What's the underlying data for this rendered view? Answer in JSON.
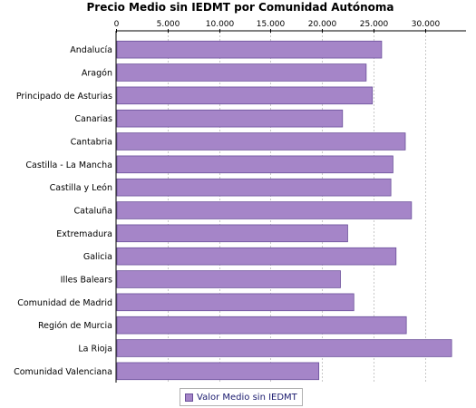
{
  "chart_data": {
    "type": "bar",
    "orientation": "horizontal",
    "title": "Precio Medio sin IEDMT por Comunidad Autónoma",
    "categories": [
      "Andalucía",
      "Aragón",
      "Principado de Asturias",
      "Canarias",
      "Cantabria",
      "Castilla - La Mancha",
      "Castilla y León",
      "Cataluña",
      "Extremadura",
      "Galicia",
      "Illes Balears",
      "Comunidad de Madrid",
      "Región de Murcia",
      "La Rioja",
      "Comunidad Valenciana"
    ],
    "series": [
      {
        "name": "Valor Medio sin IEDMT",
        "color": "#a585c8",
        "values": [
          25800,
          24300,
          24900,
          22000,
          28100,
          26900,
          26700,
          28700,
          22500,
          27200,
          21800,
          23100,
          28200,
          32600,
          19700
        ]
      }
    ],
    "value_axis": {
      "min": 0,
      "max": 34000,
      "ticks": [
        0,
        5000,
        10000,
        15000,
        20000,
        25000,
        30000
      ],
      "tick_labels": [
        "0",
        "5.000",
        "10.000",
        "15.000",
        "20.000",
        "25.000",
        "30.000"
      ],
      "position": "top"
    },
    "grid": true,
    "legend_position": "bottom"
  }
}
